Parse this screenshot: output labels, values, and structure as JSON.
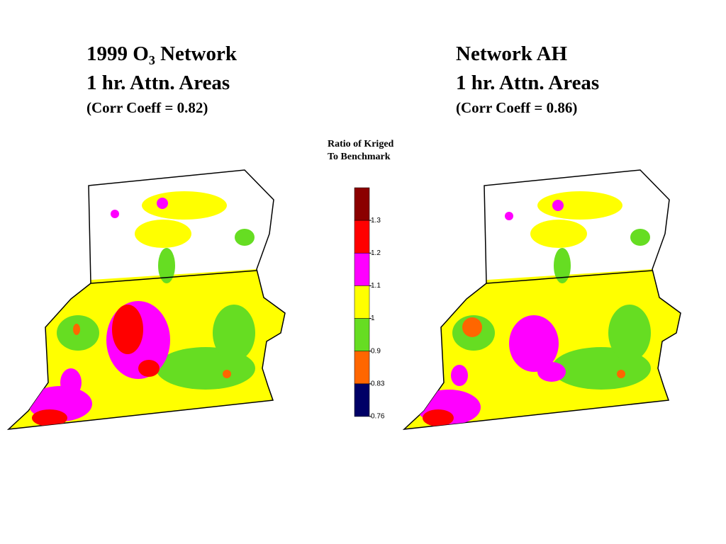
{
  "left_map": {
    "title_line1": {
      "before": "1999 O",
      "sub": "3",
      "after": " Network"
    },
    "title_line2": "1 hr. Attn. Areas",
    "title_line3": "(Corr Coeff = 0.82)"
  },
  "right_map": {
    "title_line1": "Network AH",
    "title_line2": "1 hr. Attn. Areas",
    "title_line3": "(Corr Coeff = 0.86)"
  },
  "legend": {
    "title": [
      "Ratio of Kriged",
      "To Benchmark"
    ],
    "colors": [
      "#8b0000",
      "#ff0000",
      "#ff00ff",
      "#ffff00",
      "#66dd22",
      "#ff6600",
      "#000066"
    ],
    "labels": [
      "1.3",
      "1.2",
      "1.1",
      "1",
      "0.9",
      "0.83",
      "0.76"
    ]
  }
}
